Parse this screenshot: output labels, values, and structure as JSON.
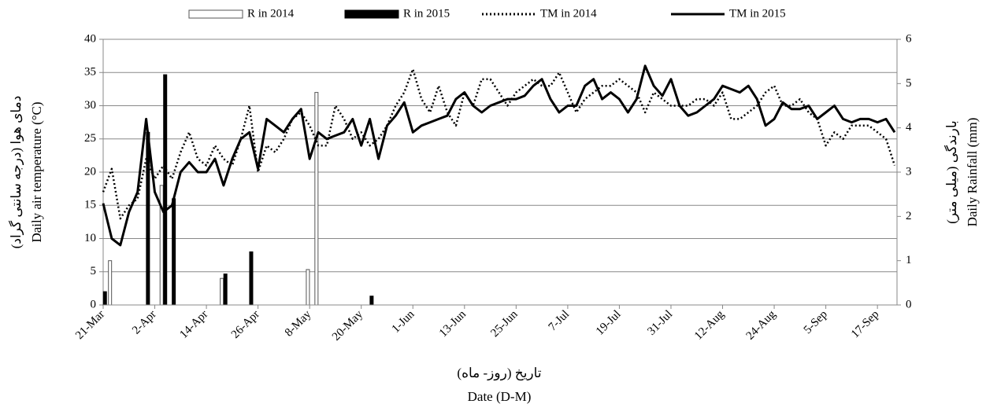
{
  "chart_data": {
    "type": "bar-line",
    "y_label_fa": "(دمای هوا (درجه سانتی گراد",
    "y_label": "Daily  air temperature (°C)",
    "y2_label_fa": "بارندگی (میلی متر)",
    "y2_label": "Daily  Rainfall  (mm)",
    "x_label_fa": "تاریخ (روز- ماه)",
    "x_label": "Date  (D-M)",
    "categories": [
      "21-Mar",
      null,
      null,
      null,
      null,
      null,
      "2-Apr",
      null,
      null,
      null,
      null,
      null,
      "14-Apr",
      null,
      null,
      null,
      null,
      null,
      "26-Apr",
      null,
      null,
      null,
      null,
      null,
      "8-May",
      null,
      null,
      null,
      null,
      null,
      "20-May",
      null,
      null,
      null,
      null,
      null,
      "1-Jun",
      null,
      null,
      null,
      null,
      null,
      "13-Jun",
      null,
      null,
      null,
      null,
      null,
      "25-Jun",
      null,
      null,
      null,
      null,
      null,
      "7-Jul",
      null,
      null,
      null,
      null,
      null,
      "19-Jul",
      null,
      null,
      null,
      null,
      null,
      "31-Jul",
      null,
      null,
      null,
      null,
      null,
      "12-Aug",
      null,
      null,
      null,
      null,
      null,
      "24-Aug",
      null,
      null,
      null,
      null,
      null,
      "5-Sep",
      null,
      null,
      null,
      null,
      null,
      "17-Sep",
      null,
      null
    ],
    "ylim": [
      0,
      40
    ],
    "yticks": [
      0,
      5,
      10,
      15,
      20,
      25,
      30,
      35,
      40
    ],
    "y2lim": [
      0,
      6
    ],
    "y2ticks": [
      0,
      1,
      2,
      3,
      4,
      5,
      6
    ],
    "grid": true,
    "legend": "top",
    "series": [
      {
        "name": "R in 2014",
        "type": "bar",
        "axis": "y2",
        "color": "#ffffff",
        "edgecolor": "#555555",
        "values": [
          null,
          1.0,
          null,
          null,
          null,
          null,
          null,
          2.7,
          null,
          null,
          null,
          null,
          null,
          null,
          0.6,
          null,
          null,
          null,
          null,
          null,
          null,
          null,
          null,
          null,
          0.8,
          4.8,
          null,
          null,
          null,
          null,
          null,
          null,
          null,
          null,
          null,
          null,
          null,
          null,
          null,
          null,
          null,
          null,
          null,
          null,
          null,
          null,
          null,
          null,
          null,
          null,
          null,
          null,
          null,
          null,
          null,
          null,
          null,
          null,
          null,
          null,
          null,
          null,
          null,
          null,
          null,
          null,
          null,
          null,
          null,
          null,
          null,
          null,
          null,
          null,
          null,
          null,
          null,
          null,
          null,
          null,
          null,
          null,
          null,
          null,
          null,
          null,
          null,
          null,
          null,
          null,
          null,
          null,
          null
        ]
      },
      {
        "name": "R in 2015",
        "type": "bar",
        "axis": "y2",
        "color": "#000000",
        "edgecolor": "#000000",
        "values": [
          0.3,
          null,
          null,
          null,
          null,
          3.9,
          null,
          5.2,
          2.4,
          null,
          null,
          null,
          null,
          null,
          0.7,
          null,
          null,
          1.2,
          null,
          null,
          null,
          null,
          null,
          null,
          null,
          null,
          null,
          null,
          null,
          null,
          null,
          0.2,
          null,
          null,
          null,
          null,
          null,
          null,
          null,
          null,
          null,
          null,
          null,
          null,
          null,
          null,
          null,
          null,
          null,
          null,
          null,
          null,
          null,
          null,
          null,
          null,
          null,
          null,
          null,
          null,
          null,
          null,
          null,
          null,
          null,
          null,
          null,
          null,
          null,
          null,
          null,
          null,
          null,
          null,
          null,
          null,
          null,
          null,
          null,
          null,
          null,
          null,
          null,
          null,
          null,
          null,
          null,
          null,
          null,
          null,
          null,
          null,
          null
        ]
      },
      {
        "name": "TM in 2014",
        "type": "line",
        "dash": true,
        "color": "#000000",
        "values": [
          17,
          20.5,
          13,
          15,
          16,
          22,
          19,
          21,
          19,
          23,
          26,
          22,
          21,
          24,
          22,
          21,
          25,
          30,
          20,
          24,
          23,
          25,
          28,
          29,
          27,
          24,
          24,
          30,
          28,
          25,
          26,
          24,
          25,
          27,
          30,
          32,
          35.5,
          31,
          29,
          33,
          29,
          27,
          32,
          30,
          34,
          34,
          32,
          30,
          32,
          33,
          34,
          33,
          33,
          35,
          32,
          29,
          31,
          32,
          33,
          33,
          34,
          33,
          32,
          29,
          32,
          31,
          30,
          30,
          30,
          31,
          31,
          30,
          32,
          28,
          28,
          29,
          30,
          32,
          33,
          30,
          30,
          31,
          29,
          28,
          24,
          26,
          25,
          27,
          27,
          27,
          26,
          25,
          21
        ]
      },
      {
        "name": "TM in 2015",
        "type": "line",
        "dash": false,
        "color": "#000000",
        "values": [
          15.3,
          10,
          9,
          14,
          17,
          28,
          17,
          14,
          15,
          20,
          21.5,
          20,
          20,
          22,
          18,
          22,
          25,
          26,
          20.5,
          28,
          27,
          26,
          28,
          29.5,
          22,
          26,
          25,
          25.5,
          26,
          28,
          24,
          28,
          22,
          27,
          28.5,
          30.5,
          26,
          27,
          27.5,
          28,
          28.5,
          31,
          32,
          30,
          29,
          30,
          30.5,
          31,
          31,
          31.5,
          33,
          34,
          31,
          29,
          30,
          30,
          33,
          34,
          31,
          32,
          31,
          29,
          31,
          36,
          33,
          31.5,
          34,
          30,
          28.5,
          29,
          30,
          31,
          33,
          32.5,
          32,
          33,
          31,
          27,
          28,
          30.5,
          29.5,
          29.5,
          30,
          28,
          29,
          30,
          28,
          27.5,
          28,
          28,
          27.5,
          28,
          26
        ]
      }
    ]
  }
}
